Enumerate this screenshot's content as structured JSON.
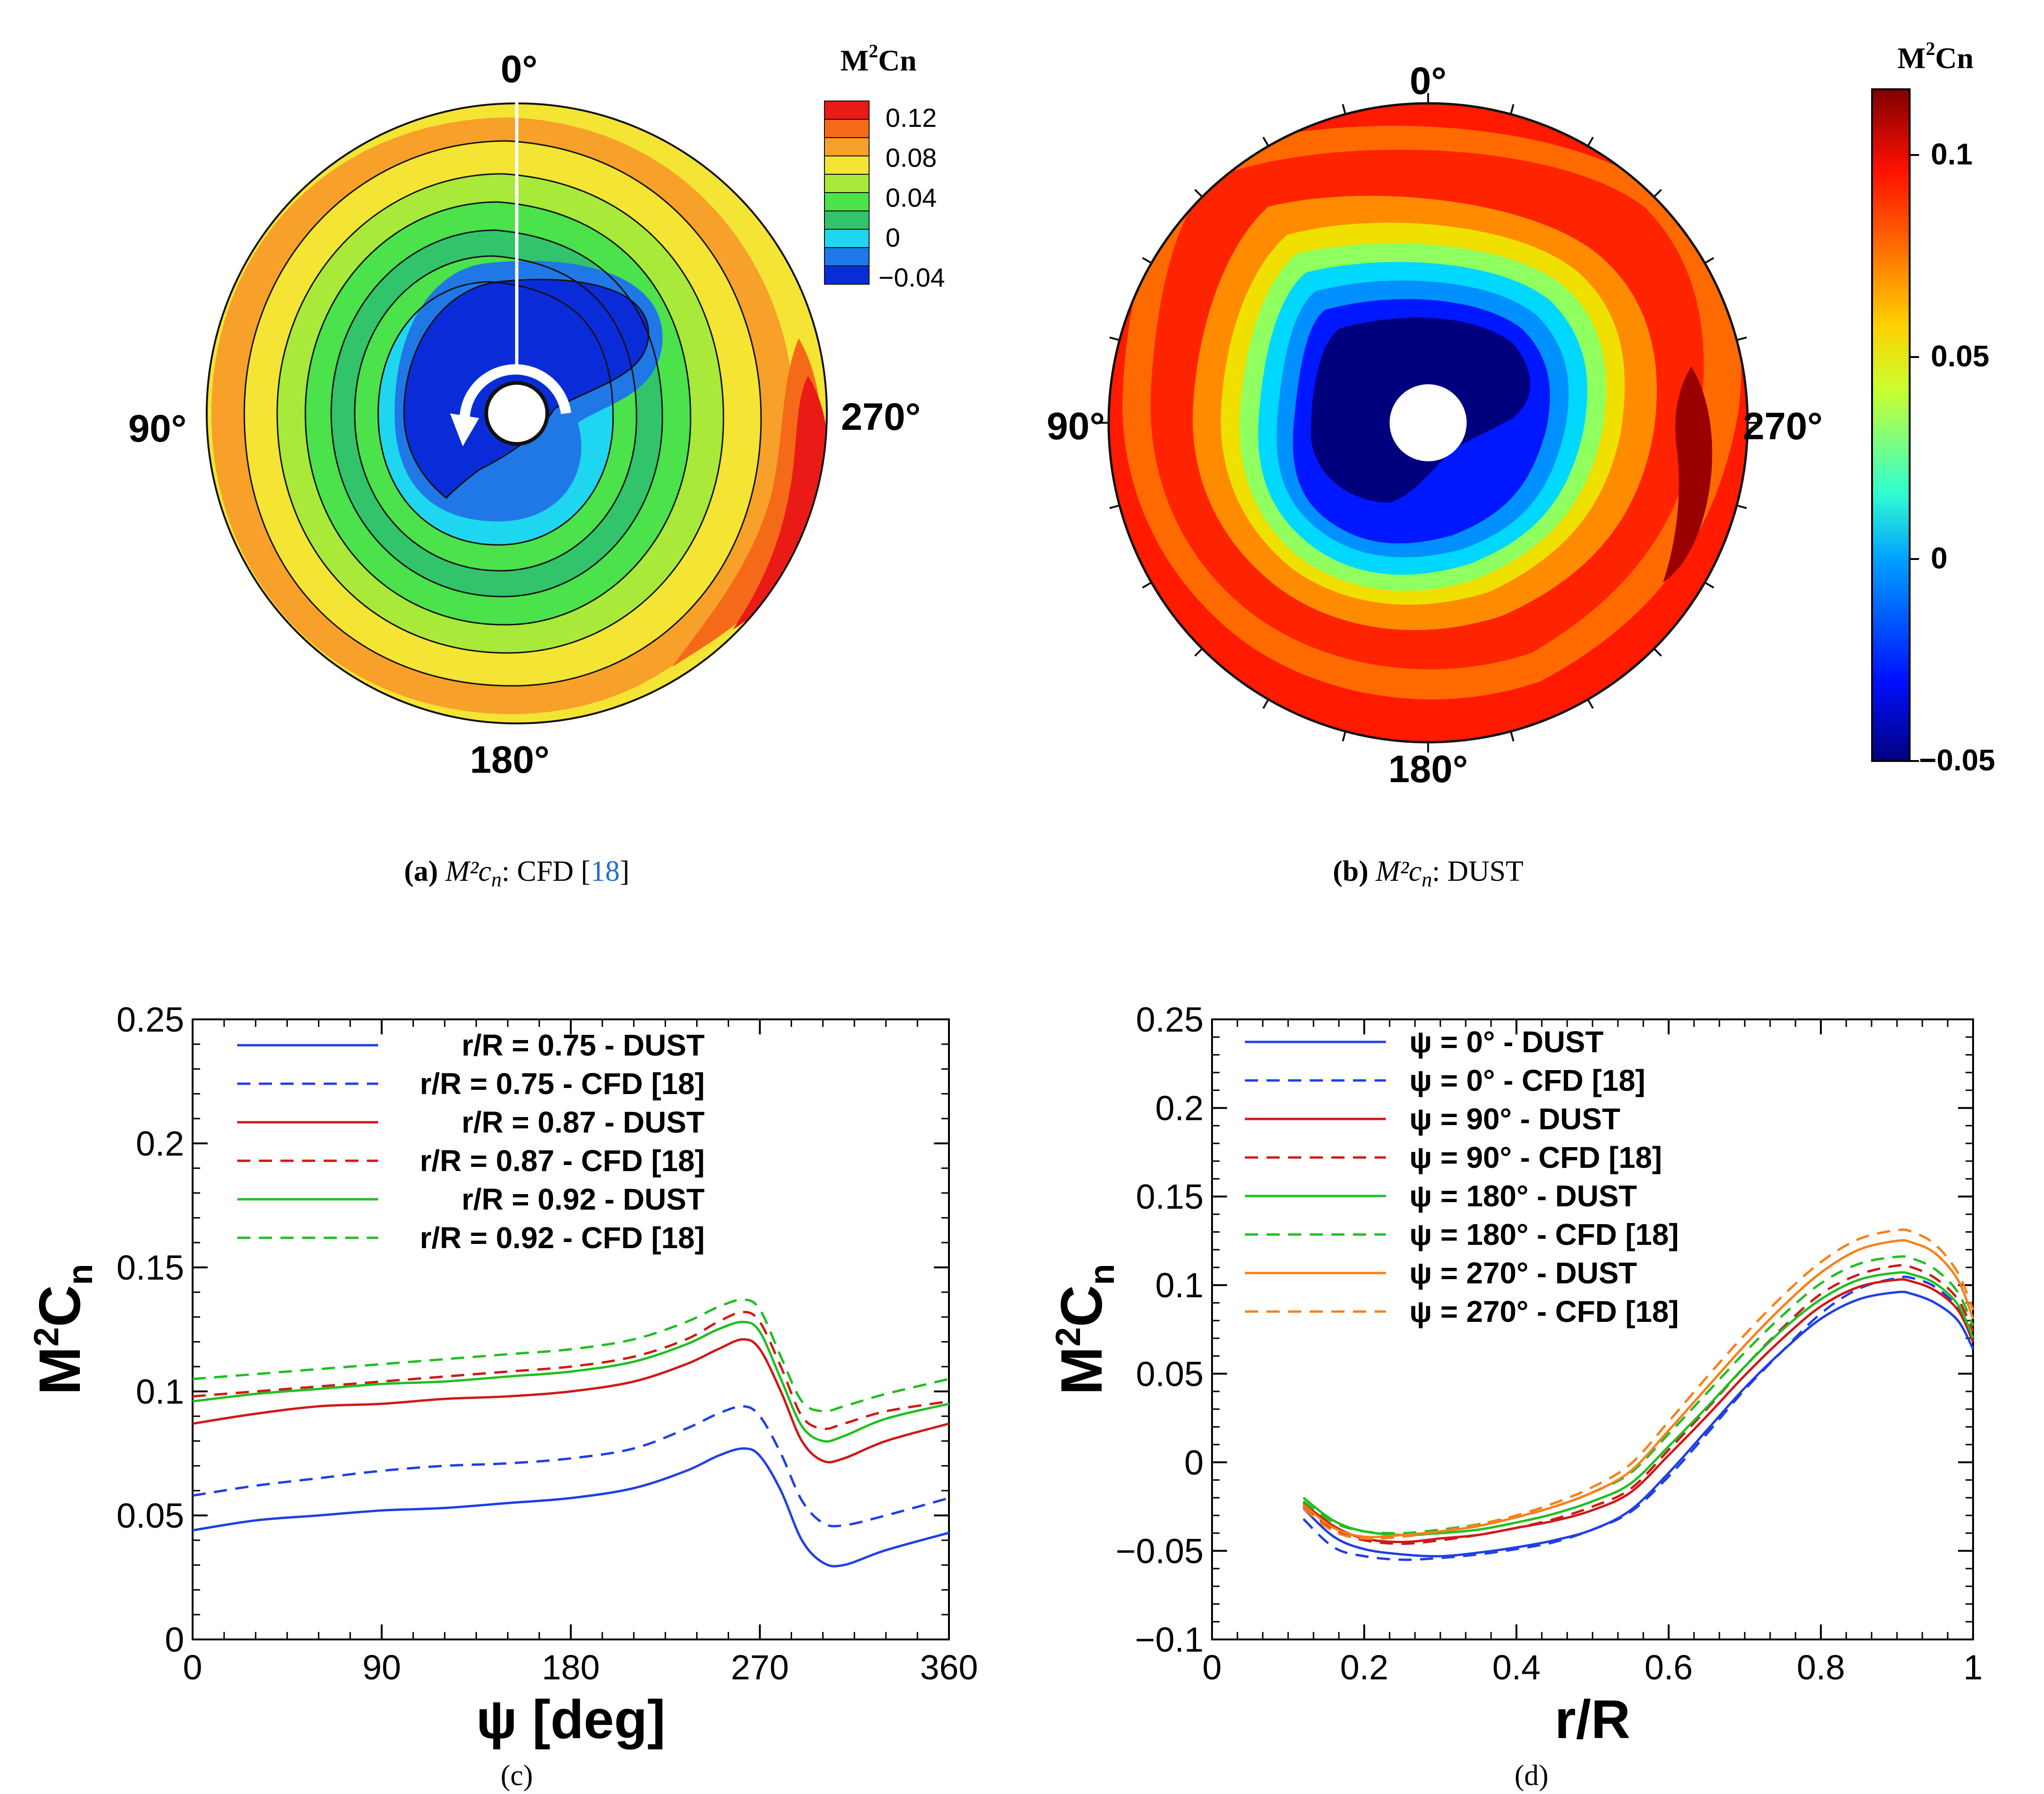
{
  "panels": {
    "a": {
      "caption_label": "(a)",
      "caption_var": "M²c",
      "caption_sub": "n",
      "caption_text": ": CFD [",
      "caption_ref": "18",
      "caption_close": "]"
    },
    "b": {
      "caption_label": "(b)",
      "caption_var": "M²c",
      "caption_sub": "n",
      "caption_text": ": DUST"
    },
    "c": {
      "caption_label": "(c)"
    },
    "d": {
      "caption_label": "(d)"
    }
  },
  "chart_data": [
    {
      "id": "a",
      "type": "heatmap",
      "subtype": "polar-contour",
      "title": "M²Cn (CFD)",
      "colorbar_title_main": "M",
      "colorbar_title_sup": "2",
      "colorbar_title_tail": "Cn",
      "azimuth_labels": [
        "0°",
        "90°",
        "180°",
        "270°"
      ],
      "colorbar_range": [
        -0.04,
        0.12
      ],
      "colorbar_ticks": [
        "0.12",
        "0.08",
        "0.04",
        "0",
        "−0.04"
      ],
      "colors": {
        "level_0": "#0a2cd8",
        "level_1": "#1f78e6",
        "level_2": "#1fd6f0",
        "level_3": "#31c46b",
        "level_4": "#4be24b",
        "level_5": "#a8e93a",
        "level_6": "#f4e434",
        "level_7": "#f7a02a",
        "level_8": "#f56a18",
        "level_9": "#ea1a16"
      }
    },
    {
      "id": "b",
      "type": "heatmap",
      "subtype": "polar-contour",
      "title": "M²Cn (DUST)",
      "colorbar_title_main": "M",
      "colorbar_title_sup": "2",
      "colorbar_title_tail": "Cn",
      "azimuth_labels": [
        "0°",
        "90°",
        "180°",
        "270°"
      ],
      "colorbar_range": [
        -0.05,
        0.117
      ],
      "colorbar_ticks": [
        "0.1",
        "0.05",
        "0",
        "−0.05"
      ],
      "colors": {
        "deep_blue": "#00007f",
        "blue": "#0018ff",
        "cyan": "#00d0ff",
        "yellow": "#f0f000",
        "orange": "#ff8a00",
        "red": "#ff1a00",
        "dark_red": "#7f0000"
      }
    },
    {
      "id": "c",
      "type": "line",
      "xlabel": "ψ [deg]",
      "ylabel_main": "M",
      "ylabel_sup": "2",
      "ylabel_tail": "C",
      "ylabel_sub": "n",
      "xlim": [
        0,
        360
      ],
      "ylim": [
        0,
        0.25
      ],
      "xticks": [
        0,
        90,
        180,
        270,
        360
      ],
      "xtick_labels": [
        "0",
        "90",
        "180",
        "270",
        "360"
      ],
      "yticks": [
        0,
        0.05,
        0.1,
        0.15,
        0.2,
        0.25
      ],
      "ytick_labels": [
        "0",
        "0.05",
        "0.1",
        "0.15",
        "0.2",
        "0.25"
      ],
      "legend": "top-left",
      "series": [
        {
          "name": "r/R = 0.75 - DUST",
          "color": "#1f3fe6",
          "dash": false,
          "x": [
            0,
            30,
            60,
            90,
            120,
            150,
            180,
            210,
            235,
            250,
            262,
            270,
            280,
            290,
            300,
            310,
            330,
            360
          ],
          "y": [
            0.044,
            0.048,
            0.05,
            0.052,
            0.053,
            0.055,
            0.057,
            0.061,
            0.068,
            0.074,
            0.077,
            0.074,
            0.06,
            0.04,
            0.031,
            0.03,
            0.036,
            0.043
          ]
        },
        {
          "name": "r/R = 0.75 - CFD [18]",
          "color": "#1f3fe6",
          "dash": true,
          "x": [
            0,
            30,
            60,
            90,
            120,
            150,
            180,
            210,
            235,
            250,
            262,
            270,
            280,
            290,
            300,
            310,
            330,
            360
          ],
          "y": [
            0.058,
            0.062,
            0.065,
            0.068,
            0.07,
            0.071,
            0.073,
            0.077,
            0.085,
            0.091,
            0.094,
            0.09,
            0.075,
            0.056,
            0.047,
            0.046,
            0.05,
            0.057
          ]
        },
        {
          "name": "r/R = 0.87 - DUST",
          "color": "#d01818",
          "dash": false,
          "x": [
            0,
            30,
            60,
            90,
            120,
            150,
            180,
            210,
            235,
            250,
            262,
            270,
            280,
            290,
            300,
            310,
            330,
            360
          ],
          "y": [
            0.087,
            0.091,
            0.094,
            0.095,
            0.097,
            0.098,
            0.1,
            0.104,
            0.111,
            0.117,
            0.121,
            0.117,
            0.1,
            0.08,
            0.072,
            0.073,
            0.08,
            0.087
          ]
        },
        {
          "name": "r/R = 0.87 - CFD [18]",
          "color": "#d01818",
          "dash": true,
          "x": [
            0,
            30,
            60,
            90,
            120,
            150,
            180,
            210,
            235,
            250,
            262,
            270,
            280,
            290,
            300,
            310,
            330,
            360
          ],
          "y": [
            0.098,
            0.1,
            0.102,
            0.104,
            0.106,
            0.108,
            0.11,
            0.114,
            0.121,
            0.128,
            0.132,
            0.128,
            0.11,
            0.09,
            0.085,
            0.087,
            0.092,
            0.096
          ]
        },
        {
          "name": "r/R = 0.92 - DUST",
          "color": "#1fbf1f",
          "dash": false,
          "x": [
            0,
            30,
            60,
            90,
            120,
            150,
            180,
            210,
            235,
            250,
            262,
            270,
            280,
            290,
            300,
            310,
            330,
            360
          ],
          "y": [
            0.096,
            0.099,
            0.101,
            0.103,
            0.104,
            0.106,
            0.108,
            0.112,
            0.119,
            0.125,
            0.128,
            0.124,
            0.105,
            0.086,
            0.08,
            0.082,
            0.089,
            0.095
          ]
        },
        {
          "name": "r/R = 0.92 - CFD [18]",
          "color": "#1fbf1f",
          "dash": true,
          "x": [
            0,
            30,
            60,
            90,
            120,
            150,
            180,
            210,
            235,
            250,
            262,
            270,
            280,
            290,
            300,
            310,
            330,
            360
          ],
          "y": [
            0.105,
            0.107,
            0.109,
            0.111,
            0.113,
            0.115,
            0.117,
            0.121,
            0.128,
            0.134,
            0.137,
            0.133,
            0.114,
            0.096,
            0.092,
            0.094,
            0.099,
            0.105
          ]
        }
      ]
    },
    {
      "id": "d",
      "type": "line",
      "xlabel": "r/R",
      "ylabel_main": "M",
      "ylabel_sup": "2",
      "ylabel_tail": "C",
      "ylabel_sub": "n",
      "xlim": [
        0,
        1
      ],
      "ylim": [
        -0.1,
        0.25
      ],
      "xticks": [
        0,
        0.2,
        0.4,
        0.6,
        0.8,
        1
      ],
      "xtick_labels": [
        "0",
        "0.2",
        "0.4",
        "0.6",
        "0.8",
        "1"
      ],
      "yticks": [
        -0.1,
        -0.05,
        0,
        0.05,
        0.1,
        0.15,
        0.2,
        0.25
      ],
      "ytick_labels": [
        "−0.1",
        "−0.05",
        "0",
        "0.05",
        "0.1",
        "0.15",
        "0.2",
        "0.25"
      ],
      "legend": "top-left",
      "series": [
        {
          "name": "ψ = 0° - DUST",
          "color": "#1f3fe6",
          "dash": false,
          "x": [
            0.12,
            0.16,
            0.2,
            0.25,
            0.3,
            0.35,
            0.4,
            0.45,
            0.5,
            0.55,
            0.6,
            0.65,
            0.7,
            0.75,
            0.8,
            0.85,
            0.9,
            0.92,
            0.95,
            0.98,
            1.0
          ],
          "y": [
            -0.026,
            -0.042,
            -0.049,
            -0.052,
            -0.053,
            -0.051,
            -0.048,
            -0.044,
            -0.038,
            -0.027,
            -0.006,
            0.018,
            0.042,
            0.063,
            0.081,
            0.092,
            0.096,
            0.095,
            0.09,
            0.08,
            0.064
          ]
        },
        {
          "name": "ψ = 0° - CFD [18]",
          "color": "#1f3fe6",
          "dash": true,
          "x": [
            0.12,
            0.16,
            0.2,
            0.25,
            0.3,
            0.35,
            0.4,
            0.45,
            0.5,
            0.55,
            0.6,
            0.65,
            0.7,
            0.75,
            0.8,
            0.85,
            0.9,
            0.92,
            0.95,
            0.98,
            1.0
          ],
          "y": [
            -0.032,
            -0.048,
            -0.053,
            -0.055,
            -0.054,
            -0.052,
            -0.049,
            -0.045,
            -0.038,
            -0.028,
            -0.008,
            0.016,
            0.041,
            0.063,
            0.084,
            0.098,
            0.104,
            0.104,
            0.099,
            0.087,
            0.068
          ]
        },
        {
          "name": "ψ = 90° - DUST",
          "color": "#d01818",
          "dash": false,
          "x": [
            0.12,
            0.16,
            0.2,
            0.25,
            0.3,
            0.35,
            0.4,
            0.45,
            0.5,
            0.55,
            0.6,
            0.65,
            0.7,
            0.75,
            0.8,
            0.85,
            0.9,
            0.92,
            0.95,
            0.98,
            1.0
          ],
          "y": [
            -0.023,
            -0.036,
            -0.043,
            -0.045,
            -0.043,
            -0.041,
            -0.037,
            -0.033,
            -0.027,
            -0.017,
            0.004,
            0.026,
            0.049,
            0.07,
            0.088,
            0.099,
            0.103,
            0.102,
            0.097,
            0.086,
            0.068
          ]
        },
        {
          "name": "ψ = 90° - CFD [18]",
          "color": "#d01818",
          "dash": true,
          "x": [
            0.12,
            0.16,
            0.2,
            0.25,
            0.3,
            0.35,
            0.4,
            0.45,
            0.5,
            0.55,
            0.6,
            0.65,
            0.7,
            0.75,
            0.8,
            0.85,
            0.9,
            0.92,
            0.95,
            0.98,
            1.0
          ],
          "y": [
            -0.025,
            -0.038,
            -0.044,
            -0.046,
            -0.044,
            -0.041,
            -0.037,
            -0.032,
            -0.025,
            -0.015,
            0.007,
            0.03,
            0.054,
            0.076,
            0.095,
            0.106,
            0.111,
            0.11,
            0.104,
            0.092,
            0.074
          ]
        },
        {
          "name": "ψ = 180° - DUST",
          "color": "#1fbf1f",
          "dash": false,
          "x": [
            0.12,
            0.16,
            0.2,
            0.25,
            0.3,
            0.35,
            0.4,
            0.45,
            0.5,
            0.55,
            0.6,
            0.65,
            0.7,
            0.75,
            0.8,
            0.85,
            0.9,
            0.92,
            0.95,
            0.98,
            1.0
          ],
          "y": [
            -0.02,
            -0.033,
            -0.039,
            -0.041,
            -0.04,
            -0.038,
            -0.034,
            -0.029,
            -0.022,
            -0.012,
            0.009,
            0.031,
            0.054,
            0.075,
            0.092,
            0.103,
            0.107,
            0.106,
            0.101,
            0.089,
            0.07
          ]
        },
        {
          "name": "ψ = 180° - CFD [18]",
          "color": "#1fbf1f",
          "dash": true,
          "x": [
            0.12,
            0.16,
            0.2,
            0.25,
            0.3,
            0.35,
            0.4,
            0.45,
            0.5,
            0.55,
            0.6,
            0.65,
            0.7,
            0.75,
            0.8,
            0.85,
            0.9,
            0.92,
            0.95,
            0.98,
            1.0
          ],
          "y": [
            -0.022,
            -0.034,
            -0.039,
            -0.04,
            -0.038,
            -0.035,
            -0.031,
            -0.025,
            -0.017,
            -0.006,
            0.016,
            0.039,
            0.062,
            0.083,
            0.101,
            0.112,
            0.116,
            0.115,
            0.109,
            0.096,
            0.077
          ]
        },
        {
          "name": "ψ = 270° - DUST",
          "color": "#f7801a",
          "dash": false,
          "x": [
            0.12,
            0.16,
            0.2,
            0.25,
            0.3,
            0.35,
            0.4,
            0.45,
            0.5,
            0.55,
            0.6,
            0.65,
            0.7,
            0.75,
            0.8,
            0.85,
            0.9,
            0.92,
            0.95,
            0.98,
            1.0
          ],
          "y": [
            -0.024,
            -0.037,
            -0.042,
            -0.041,
            -0.039,
            -0.036,
            -0.031,
            -0.025,
            -0.017,
            -0.005,
            0.018,
            0.042,
            0.066,
            0.088,
            0.107,
            0.12,
            0.125,
            0.124,
            0.118,
            0.103,
            0.081
          ]
        },
        {
          "name": "ψ = 270° - CFD [18]",
          "color": "#f7801a",
          "dash": true,
          "x": [
            0.12,
            0.16,
            0.2,
            0.25,
            0.3,
            0.35,
            0.4,
            0.45,
            0.5,
            0.55,
            0.6,
            0.65,
            0.7,
            0.75,
            0.8,
            0.85,
            0.9,
            0.92,
            0.95,
            0.98,
            1.0
          ],
          "y": [
            -0.026,
            -0.039,
            -0.043,
            -0.042,
            -0.039,
            -0.035,
            -0.03,
            -0.023,
            -0.014,
            -0.001,
            0.023,
            0.048,
            0.072,
            0.094,
            0.113,
            0.126,
            0.131,
            0.13,
            0.123,
            0.107,
            0.086
          ]
        }
      ]
    }
  ]
}
